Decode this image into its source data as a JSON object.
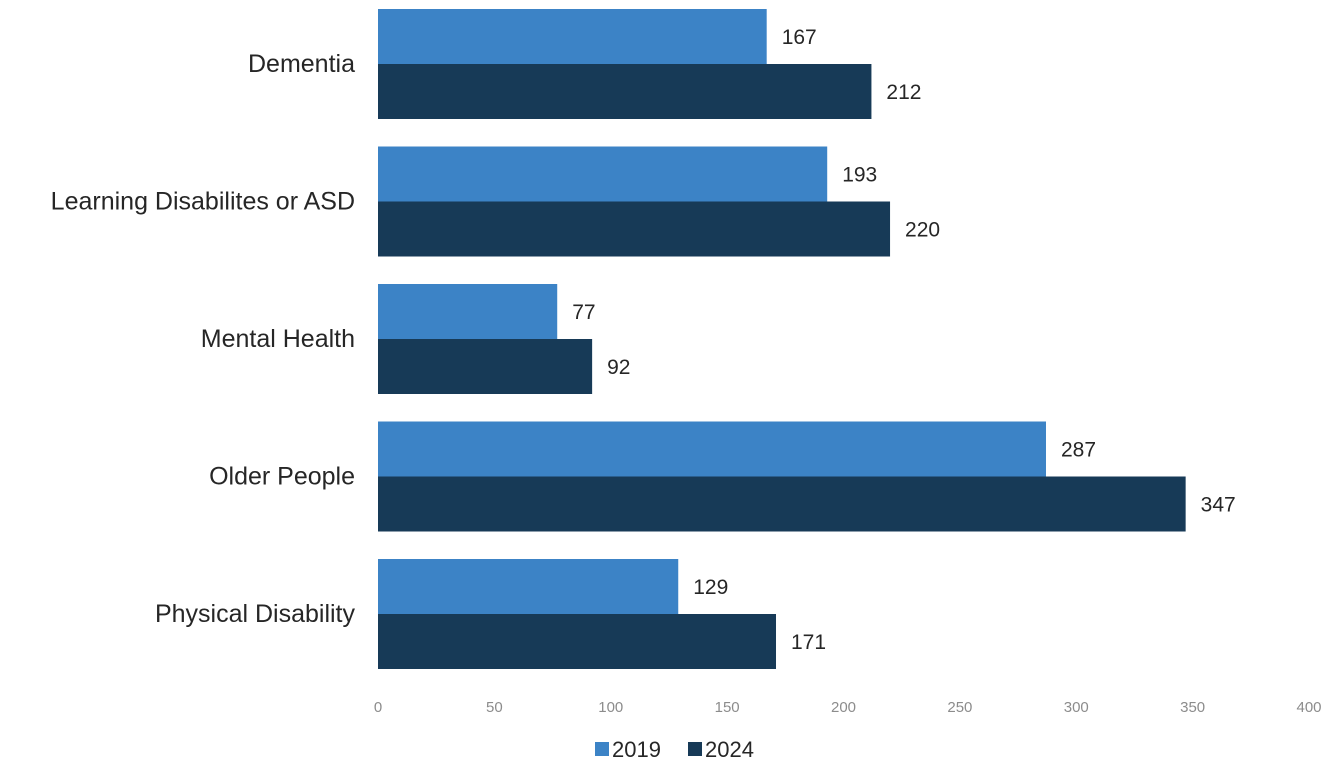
{
  "chart_data": {
    "type": "bar",
    "orientation": "horizontal",
    "categories": [
      "Dementia",
      "Learning Disabilites or ASD",
      "Mental Health",
      "Older People",
      "Physical Disability"
    ],
    "series": [
      {
        "name": "2019",
        "values": [
          167,
          193,
          77,
          287,
          129
        ],
        "color": "#3c83c6"
      },
      {
        "name": "2024",
        "values": [
          212,
          220,
          92,
          347,
          171
        ],
        "color": "#173a57"
      }
    ],
    "xlim": [
      0,
      400
    ],
    "xticks": [
      0,
      50,
      100,
      150,
      200,
      250,
      300,
      350,
      400
    ],
    "grid": false,
    "legend_position": "bottom",
    "data_labels": true
  }
}
